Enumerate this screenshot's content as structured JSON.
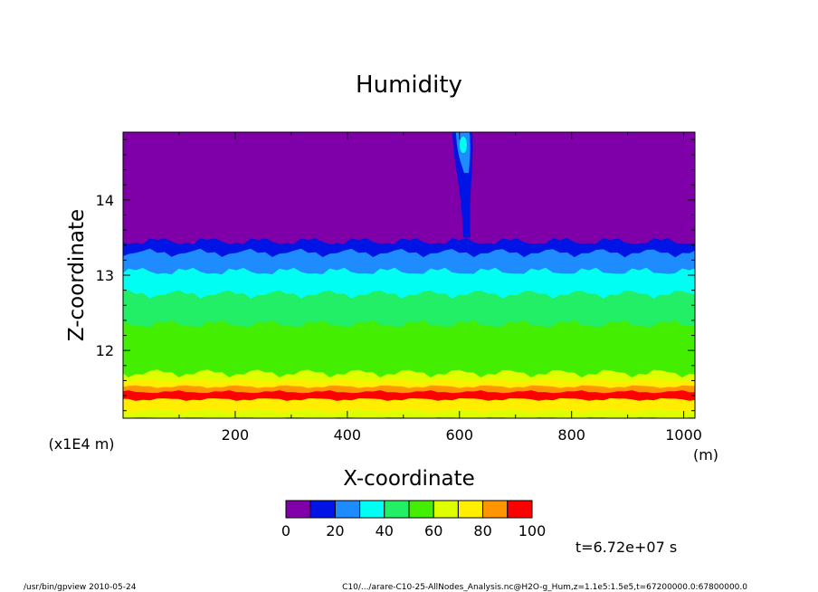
{
  "chart_data": {
    "type": "heatmap",
    "title": "Humidity",
    "xlabel": "X-coordinate",
    "ylabel": "Z-coordinate",
    "x_unit": "(m)",
    "y_scale_note": "(x1E4 m)",
    "xlim": [
      0,
      1020
    ],
    "ylim": [
      11.1,
      14.9
    ],
    "x_ticks": [
      200,
      400,
      600,
      800,
      1000
    ],
    "y_ticks": [
      12,
      13,
      14
    ],
    "colorbar": {
      "levels": [
        0,
        10,
        20,
        30,
        40,
        50,
        60,
        70,
        80,
        90,
        100
      ],
      "tick_labels": [
        "0",
        "20",
        "40",
        "60",
        "80",
        "100"
      ],
      "colors": [
        "#7f00a8",
        "#0014e6",
        "#1e8cff",
        "#00fff2",
        "#22ee66",
        "#44ee00",
        "#ddff00",
        "#ffee00",
        "#ff9500",
        "#ff0000",
        "#ff9a9a"
      ]
    },
    "layers": [
      {
        "bin": "10-20",
        "z_lower_edge": 13.45
      },
      {
        "bin": "20-30",
        "z_lower_edge": 13.3
      },
      {
        "bin": "30-40",
        "z_lower_edge": 13.05
      },
      {
        "bin": "40-50",
        "z_lower_edge": 12.75
      },
      {
        "bin": "50-60",
        "z_lower_edge": 12.35
      },
      {
        "bin": "60-70",
        "z_lower_edge": 11.7
      },
      {
        "bin": "70-80",
        "z_lower_edge": 11.6
      },
      {
        "bin": "80-90",
        "z_lower_edge": 11.52
      },
      {
        "bin": "90-100",
        "z_lower_edge": 11.45
      },
      {
        "bin": "70-80",
        "z_lower_edge": 11.35
      },
      {
        "bin": "60-70",
        "z_lower_edge": 11.2
      },
      {
        "bin": "50-60",
        "z_lower_edge": 11.1
      }
    ],
    "plume": {
      "x": 610,
      "z_top": 14.9,
      "z_bottom": 13.5,
      "peak_bin": "30-40"
    }
  },
  "time_label": "t=6.72e+07 s",
  "footer_left": "/usr/bin/gpview  2010-05-24",
  "footer_right": "C10/.../arare-C10-25-AllNodes_Analysis.nc@H2O-g_Hum,z=1.1e5:1.5e5,t=67200000.0:67800000.0"
}
